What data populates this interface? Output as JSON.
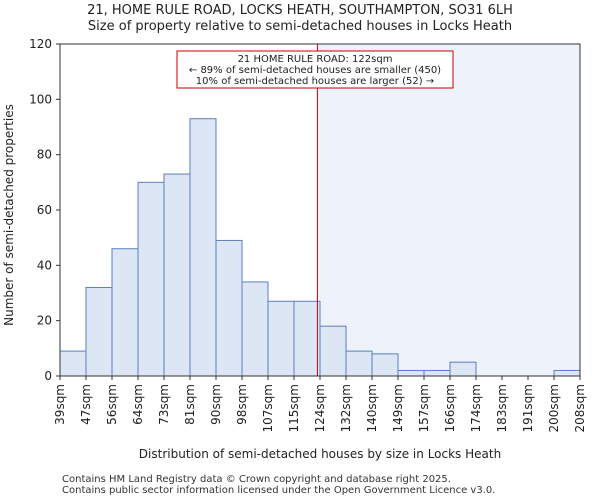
{
  "header": {
    "title_line1": "21, HOME RULE ROAD, LOCKS HEATH, SOUTHAMPTON, SO31 6LH",
    "title_line2": "Size of property relative to semi-detached houses in Locks Heath"
  },
  "footer": {
    "line1": "Contains HM Land Registry data © Crown copyright and database right 2025.",
    "line2": "Contains public sector information licensed under the Open Government Licence v3.0."
  },
  "colors": {
    "bar_fill": "#dce6f5",
    "bar_stroke": "#5a7fc0",
    "highlight_region": "#eef2fb",
    "marker_line": "#c00000",
    "annotation_border": "#c00000"
  },
  "chart_data": {
    "type": "bar",
    "title": "Size of property relative to semi-detached houses in Locks Heath",
    "xlabel": "Distribution of semi-detached houses by size in Locks Heath",
    "ylabel": "Number of semi-detached properties",
    "ylim": [
      0,
      120
    ],
    "yticks": [
      0,
      20,
      40,
      60,
      80,
      100,
      120
    ],
    "bin_edges": [
      "39sqm",
      "47sqm",
      "56sqm",
      "64sqm",
      "73sqm",
      "81sqm",
      "90sqm",
      "98sqm",
      "107sqm",
      "115sqm",
      "124sqm",
      "132sqm",
      "140sqm",
      "149sqm",
      "157sqm",
      "166sqm",
      "174sqm",
      "183sqm",
      "191sqm",
      "200sqm",
      "208sqm"
    ],
    "values": [
      9,
      32,
      46,
      70,
      73,
      93,
      49,
      34,
      27,
      27,
      18,
      9,
      8,
      2,
      2,
      5,
      0,
      0,
      0,
      2
    ],
    "marker": {
      "value_bin_position": 9.9,
      "label_line1": "21 HOME RULE ROAD: 122sqm",
      "label_line2": "← 89% of semi-detached houses are smaller (450)",
      "label_line3": "10% of semi-detached houses are larger (52) →"
    }
  }
}
